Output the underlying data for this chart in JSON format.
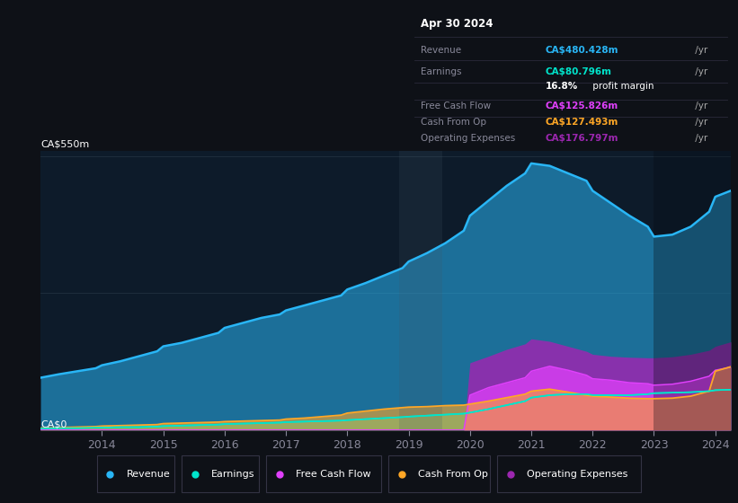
{
  "bg_color": "#0e1117",
  "plot_bg_color": "#0d1b2a",
  "title_date": "Apr 30 2024",
  "tooltip": {
    "Revenue": {
      "value": "CA$480.428m",
      "unit": " /yr",
      "color": "#29b6f6"
    },
    "Earnings": {
      "value": "CA$80.796m",
      "unit": " /yr",
      "color": "#00e5cc"
    },
    "profit_margin_pct": "16.8%",
    "profit_margin_text": " profit margin",
    "Free Cash Flow": {
      "value": "CA$125.826m",
      "unit": " /yr",
      "color": "#e040fb"
    },
    "Cash From Op": {
      "value": "CA$127.493m",
      "unit": " /yr",
      "color": "#ffa726"
    },
    "Operating Expenses": {
      "value": "CA$176.797m",
      "unit": " /yr",
      "color": "#9c27b0"
    }
  },
  "years": [
    2013.0,
    2013.3,
    2013.6,
    2013.9,
    2014.0,
    2014.3,
    2014.6,
    2014.9,
    2015.0,
    2015.3,
    2015.6,
    2015.9,
    2016.0,
    2016.3,
    2016.6,
    2016.9,
    2017.0,
    2017.3,
    2017.6,
    2017.9,
    2018.0,
    2018.3,
    2018.6,
    2018.9,
    2019.0,
    2019.3,
    2019.6,
    2019.9,
    2020.0,
    2020.3,
    2020.6,
    2020.9,
    2021.0,
    2021.3,
    2021.6,
    2021.9,
    2022.0,
    2022.3,
    2022.6,
    2022.9,
    2023.0,
    2023.3,
    2023.6,
    2023.9,
    2024.0,
    2024.25
  ],
  "revenue": [
    105,
    112,
    118,
    124,
    130,
    138,
    148,
    158,
    168,
    175,
    185,
    195,
    205,
    215,
    225,
    232,
    240,
    250,
    260,
    270,
    282,
    295,
    310,
    325,
    338,
    355,
    375,
    400,
    430,
    460,
    490,
    515,
    535,
    530,
    515,
    500,
    480,
    455,
    430,
    408,
    388,
    392,
    408,
    438,
    468,
    480
  ],
  "earnings": [
    3,
    4,
    4,
    5,
    5,
    6,
    6,
    7,
    8,
    9,
    10,
    11,
    12,
    13,
    14,
    15,
    16,
    17,
    18,
    19,
    20,
    22,
    24,
    26,
    27,
    29,
    31,
    33,
    35,
    42,
    50,
    58,
    65,
    70,
    72,
    72,
    70,
    70,
    70,
    72,
    74,
    75,
    76,
    78,
    80,
    81
  ],
  "free_cash_flow": [
    0,
    0,
    0,
    0,
    0,
    0,
    0,
    0,
    0,
    0,
    0,
    0,
    0,
    0,
    0,
    0,
    0,
    0,
    0,
    0,
    0,
    0,
    0,
    0,
    0,
    0,
    0,
    0,
    70,
    85,
    95,
    105,
    118,
    128,
    120,
    110,
    103,
    100,
    95,
    93,
    90,
    92,
    98,
    108,
    120,
    126
  ],
  "cash_from_op": [
    4,
    5,
    6,
    7,
    8,
    9,
    10,
    11,
    13,
    14,
    15,
    16,
    17,
    18,
    19,
    20,
    22,
    24,
    27,
    30,
    34,
    38,
    42,
    45,
    46,
    47,
    49,
    50,
    52,
    58,
    65,
    72,
    78,
    82,
    76,
    70,
    68,
    66,
    64,
    63,
    63,
    64,
    68,
    78,
    118,
    127
  ],
  "op_expenses": [
    0,
    0,
    0,
    0,
    0,
    0,
    0,
    0,
    0,
    0,
    0,
    0,
    0,
    0,
    0,
    0,
    0,
    0,
    0,
    0,
    0,
    0,
    0,
    0,
    0,
    0,
    0,
    0,
    135,
    148,
    162,
    173,
    183,
    178,
    168,
    158,
    152,
    148,
    146,
    145,
    145,
    147,
    152,
    160,
    168,
    177
  ],
  "ylim_max": 560,
  "xtick_years": [
    2014,
    2015,
    2016,
    2017,
    2018,
    2019,
    2020,
    2021,
    2022,
    2023,
    2024
  ],
  "revenue_color": "#29b6f6",
  "earnings_color": "#00e5cc",
  "fcf_color": "#e040fb",
  "cashop_color": "#ffa726",
  "opex_color": "#9c27b0",
  "legend_items": [
    {
      "label": "Revenue",
      "color": "#29b6f6"
    },
    {
      "label": "Earnings",
      "color": "#00e5cc"
    },
    {
      "label": "Free Cash Flow",
      "color": "#e040fb"
    },
    {
      "label": "Cash From Op",
      "color": "#ffa726"
    },
    {
      "label": "Operating Expenses",
      "color": "#9c27b0"
    }
  ]
}
